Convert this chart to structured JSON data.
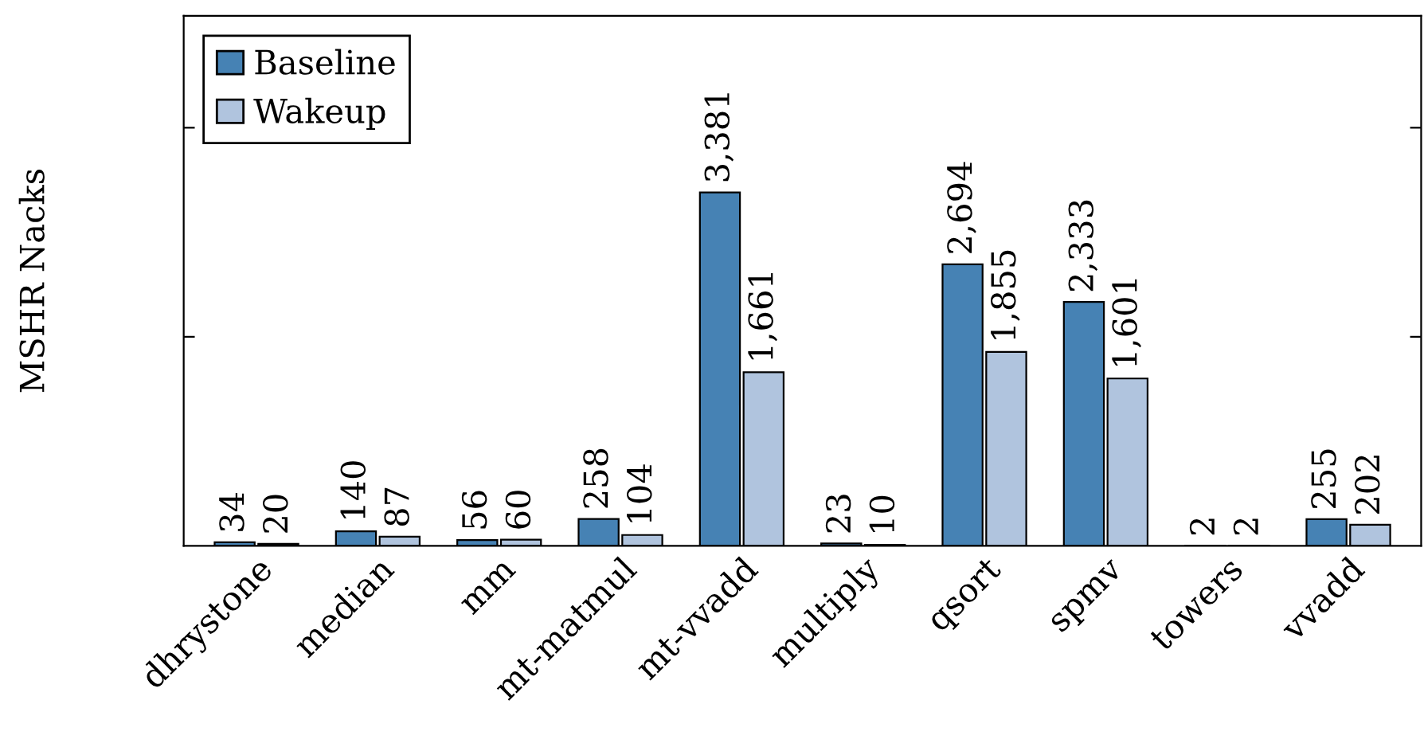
{
  "chart_data": {
    "type": "bar",
    "ylabel": "MSHR Nacks",
    "categories": [
      "dhrystone",
      "median",
      "mm",
      "mt-matmul",
      "mt-vvadd",
      "multiply",
      "qsort",
      "spmv",
      "towers",
      "vvadd"
    ],
    "series": [
      {
        "name": "Baseline",
        "color": "#4682b4",
        "values": [
          34,
          140,
          56,
          258,
          3381,
          23,
          2694,
          2333,
          2,
          255
        ],
        "value_labels": [
          "34",
          "140",
          "56",
          "258",
          "3,381",
          "23",
          "2,694",
          "2,333",
          "2",
          "255"
        ]
      },
      {
        "name": "Wakeup",
        "color": "#b0c4de",
        "values": [
          20,
          87,
          60,
          104,
          1661,
          10,
          1855,
          1601,
          2,
          202
        ],
        "value_labels": [
          "20",
          "87",
          "60",
          "104",
          "1,661",
          "10",
          "1,855",
          "1,601",
          "2",
          "202"
        ]
      }
    ],
    "ylim": [
      0,
      5070
    ],
    "yticks": [
      {
        "value": 2000,
        "label": null
      },
      {
        "value": 4000,
        "label": null
      }
    ],
    "tick_labels": "x",
    "legend": "top left",
    "grid": false
  }
}
